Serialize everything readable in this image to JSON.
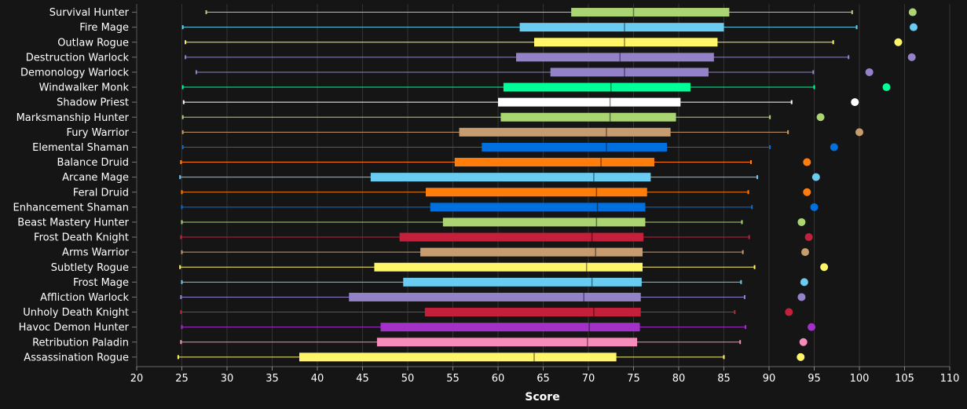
{
  "chart_data": {
    "type": "boxplot",
    "xlabel": "Score",
    "xlim": [
      20,
      110
    ],
    "x_ticks": [
      20,
      25,
      30,
      35,
      40,
      45,
      50,
      55,
      60,
      65,
      70,
      75,
      80,
      85,
      90,
      95,
      100,
      105,
      110
    ],
    "grid": true,
    "series": [
      {
        "name": "Survival Hunter",
        "color": "#abd473",
        "min": 27.7,
        "q1": 68.1,
        "median": 75.0,
        "q3": 85.6,
        "max": 99.2,
        "outlier": 105.9
      },
      {
        "name": "Fire Mage",
        "color": "#69ccf0",
        "min": 25.1,
        "q1": 62.4,
        "median": 74.0,
        "q3": 85.0,
        "max": 99.7,
        "outlier": 106.0
      },
      {
        "name": "Outlaw Rogue",
        "color": "#fff569",
        "min": 25.4,
        "q1": 64.0,
        "median": 74.0,
        "q3": 84.3,
        "max": 97.1,
        "outlier": 104.3
      },
      {
        "name": "Destruction Warlock",
        "color": "#9482c9",
        "min": 25.4,
        "q1": 62.0,
        "median": 73.5,
        "q3": 83.9,
        "max": 98.8,
        "outlier": 105.8
      },
      {
        "name": "Demonology Warlock",
        "color": "#9482c9",
        "min": 26.6,
        "q1": 65.8,
        "median": 74.0,
        "q3": 83.3,
        "max": 94.9,
        "outlier": 101.1
      },
      {
        "name": "Windwalker Monk",
        "color": "#00ff96",
        "min": 25.1,
        "q1": 60.6,
        "median": 72.5,
        "q3": 81.3,
        "max": 95.0,
        "outlier": 103.0
      },
      {
        "name": "Shadow Priest",
        "color": "#ffffff",
        "min": 25.2,
        "q1": 60.0,
        "median": 72.4,
        "q3": 80.2,
        "max": 92.5,
        "outlier": 99.5
      },
      {
        "name": "Marksmanship Hunter",
        "color": "#abd473",
        "min": 25.1,
        "q1": 60.3,
        "median": 72.4,
        "q3": 79.7,
        "max": 90.1,
        "outlier": 95.7
      },
      {
        "name": "Fury Warrior",
        "color": "#c79c6e",
        "min": 25.1,
        "q1": 55.7,
        "median": 72.0,
        "q3": 79.1,
        "max": 92.1,
        "outlier": 100.0
      },
      {
        "name": "Elemental Shaman",
        "color": "#0070de",
        "min": 25.1,
        "q1": 58.2,
        "median": 72.0,
        "q3": 78.7,
        "max": 90.1,
        "outlier": 97.2
      },
      {
        "name": "Balance Druid",
        "color": "#ff7d0a",
        "min": 24.9,
        "q1": 55.2,
        "median": 71.4,
        "q3": 77.3,
        "max": 88.0,
        "outlier": 94.2
      },
      {
        "name": "Arcane Mage",
        "color": "#69ccf0",
        "min": 24.8,
        "q1": 45.9,
        "median": 70.6,
        "q3": 76.9,
        "max": 88.7,
        "outlier": 95.2
      },
      {
        "name": "Feral Druid",
        "color": "#ff7d0a",
        "min": 25.0,
        "q1": 52.0,
        "median": 70.9,
        "q3": 76.5,
        "max": 87.7,
        "outlier": 94.2
      },
      {
        "name": "Enhancement Shaman",
        "color": "#0070de",
        "min": 25.0,
        "q1": 52.5,
        "median": 71.0,
        "q3": 76.3,
        "max": 88.1,
        "outlier": 95.0
      },
      {
        "name": "Beast Mastery Hunter",
        "color": "#abd473",
        "min": 25.0,
        "q1": 53.9,
        "median": 70.9,
        "q3": 76.3,
        "max": 87.0,
        "outlier": 93.6
      },
      {
        "name": "Frost Death Knight",
        "color": "#c41f3b",
        "min": 24.9,
        "q1": 49.1,
        "median": 70.4,
        "q3": 76.1,
        "max": 87.8,
        "outlier": 94.4
      },
      {
        "name": "Arms Warrior",
        "color": "#c79c6e",
        "min": 25.0,
        "q1": 51.4,
        "median": 70.8,
        "q3": 76.0,
        "max": 87.1,
        "outlier": 94.0
      },
      {
        "name": "Subtlety Rogue",
        "color": "#fff569",
        "min": 24.8,
        "q1": 46.3,
        "median": 69.8,
        "q3": 76.0,
        "max": 88.4,
        "outlier": 96.1
      },
      {
        "name": "Frost Mage",
        "color": "#69ccf0",
        "min": 25.0,
        "q1": 49.5,
        "median": 70.4,
        "q3": 75.9,
        "max": 86.9,
        "outlier": 93.9
      },
      {
        "name": "Affliction Warlock",
        "color": "#9482c9",
        "min": 24.9,
        "q1": 43.5,
        "median": 69.5,
        "q3": 75.8,
        "max": 87.3,
        "outlier": 93.6
      },
      {
        "name": "Unholy Death Knight",
        "color": "#c41f3b",
        "min": 24.9,
        "q1": 51.9,
        "median": 70.6,
        "q3": 75.8,
        "max": 86.2,
        "outlier": 92.2
      },
      {
        "name": "Havoc Demon Hunter",
        "color": "#a330c9",
        "min": 25.0,
        "q1": 47.0,
        "median": 70.1,
        "q3": 75.7,
        "max": 87.4,
        "outlier": 94.7
      },
      {
        "name": "Retribution Paladin",
        "color": "#f58cba",
        "min": 24.9,
        "q1": 46.6,
        "median": 69.9,
        "q3": 75.4,
        "max": 86.8,
        "outlier": 93.8
      },
      {
        "name": "Assassination Rogue",
        "color": "#fff569",
        "min": 24.6,
        "q1": 38.0,
        "median": 64.0,
        "q3": 73.1,
        "max": 85.0,
        "outlier": 93.5
      }
    ]
  }
}
